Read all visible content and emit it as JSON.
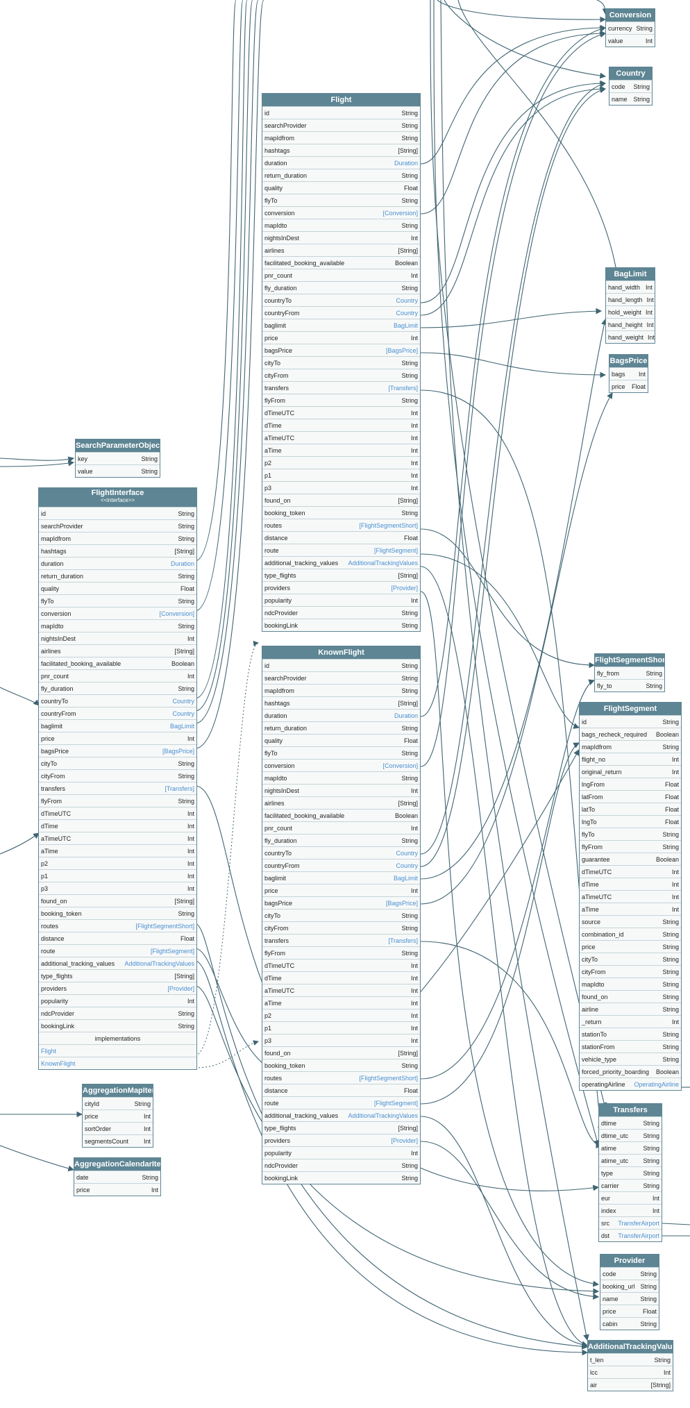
{
  "tables": {
    "conversion": {
      "title": "Conversion",
      "fields": [
        {
          "n": "currency",
          "t": "String"
        },
        {
          "n": "value",
          "t": "Int"
        }
      ]
    },
    "country": {
      "title": "Country",
      "fields": [
        {
          "n": "code",
          "t": "String"
        },
        {
          "n": "name",
          "t": "String"
        }
      ]
    },
    "flight": {
      "title": "Flight",
      "fields": [
        {
          "n": "id",
          "t": "String"
        },
        {
          "n": "searchProvider",
          "t": "String"
        },
        {
          "n": "mapIdfrom",
          "t": "String"
        },
        {
          "n": "hashtags",
          "t": "[String]"
        },
        {
          "n": "duration",
          "t": "Duration",
          "link": true
        },
        {
          "n": "return_duration",
          "t": "String"
        },
        {
          "n": "quality",
          "t": "Float"
        },
        {
          "n": "flyTo",
          "t": "String"
        },
        {
          "n": "conversion",
          "t": "[Conversion]",
          "link": true
        },
        {
          "n": "mapIdto",
          "t": "String"
        },
        {
          "n": "nightsInDest",
          "t": "Int"
        },
        {
          "n": "airlines",
          "t": "[String]"
        },
        {
          "n": "facilitated_booking_available",
          "t": "Boolean"
        },
        {
          "n": "pnr_count",
          "t": "Int"
        },
        {
          "n": "fly_duration",
          "t": "String"
        },
        {
          "n": "countryTo",
          "t": "Country",
          "link": true
        },
        {
          "n": "countryFrom",
          "t": "Country",
          "link": true
        },
        {
          "n": "baglimit",
          "t": "BagLimit",
          "link": true
        },
        {
          "n": "price",
          "t": "Int"
        },
        {
          "n": "bagsPrice",
          "t": "[BagsPrice]",
          "link": true
        },
        {
          "n": "cityTo",
          "t": "String"
        },
        {
          "n": "cityFrom",
          "t": "String"
        },
        {
          "n": "transfers",
          "t": "[Transfers]",
          "link": true
        },
        {
          "n": "flyFrom",
          "t": "String"
        },
        {
          "n": "dTimeUTC",
          "t": "Int"
        },
        {
          "n": "dTime",
          "t": "Int"
        },
        {
          "n": "aTimeUTC",
          "t": "Int"
        },
        {
          "n": "aTime",
          "t": "Int"
        },
        {
          "n": "p2",
          "t": "Int"
        },
        {
          "n": "p1",
          "t": "Int"
        },
        {
          "n": "p3",
          "t": "Int"
        },
        {
          "n": "found_on",
          "t": "[String]"
        },
        {
          "n": "booking_token",
          "t": "String"
        },
        {
          "n": "routes",
          "t": "[FlightSegmentShort]",
          "link": true
        },
        {
          "n": "distance",
          "t": "Float"
        },
        {
          "n": "route",
          "t": "[FlightSegment]",
          "link": true
        },
        {
          "n": "additional_tracking_values",
          "t": "AdditionalTrackingValues",
          "link": true
        },
        {
          "n": "type_flights",
          "t": "[String]"
        },
        {
          "n": "providers",
          "t": "[Provider]",
          "link": true
        },
        {
          "n": "popularity",
          "t": "Int"
        },
        {
          "n": "ndcProvider",
          "t": "String"
        },
        {
          "n": "bookingLink",
          "t": "String"
        }
      ]
    },
    "knownflight": {
      "title": "KnownFlight",
      "fields": [
        {
          "n": "id",
          "t": "String"
        },
        {
          "n": "searchProvider",
          "t": "String"
        },
        {
          "n": "mapIdfrom",
          "t": "String"
        },
        {
          "n": "hashtags",
          "t": "[String]"
        },
        {
          "n": "duration",
          "t": "Duration",
          "link": true
        },
        {
          "n": "return_duration",
          "t": "String"
        },
        {
          "n": "quality",
          "t": "Float"
        },
        {
          "n": "flyTo",
          "t": "String"
        },
        {
          "n": "conversion",
          "t": "[Conversion]",
          "link": true
        },
        {
          "n": "mapIdto",
          "t": "String"
        },
        {
          "n": "nightsInDest",
          "t": "Int"
        },
        {
          "n": "airlines",
          "t": "[String]"
        },
        {
          "n": "facilitated_booking_available",
          "t": "Boolean"
        },
        {
          "n": "pnr_count",
          "t": "Int"
        },
        {
          "n": "fly_duration",
          "t": "String"
        },
        {
          "n": "countryTo",
          "t": "Country",
          "link": true
        },
        {
          "n": "countryFrom",
          "t": "Country",
          "link": true
        },
        {
          "n": "baglimit",
          "t": "BagLimit",
          "link": true
        },
        {
          "n": "price",
          "t": "Int"
        },
        {
          "n": "bagsPrice",
          "t": "[BagsPrice]",
          "link": true
        },
        {
          "n": "cityTo",
          "t": "String"
        },
        {
          "n": "cityFrom",
          "t": "String"
        },
        {
          "n": "transfers",
          "t": "[Transfers]",
          "link": true
        },
        {
          "n": "flyFrom",
          "t": "String"
        },
        {
          "n": "dTimeUTC",
          "t": "Int"
        },
        {
          "n": "dTime",
          "t": "Int"
        },
        {
          "n": "aTimeUTC",
          "t": "Int"
        },
        {
          "n": "aTime",
          "t": "Int"
        },
        {
          "n": "p2",
          "t": "Int"
        },
        {
          "n": "p1",
          "t": "Int"
        },
        {
          "n": "p3",
          "t": "Int"
        },
        {
          "n": "found_on",
          "t": "[String]"
        },
        {
          "n": "booking_token",
          "t": "String"
        },
        {
          "n": "routes",
          "t": "[FlightSegmentShort]",
          "link": true
        },
        {
          "n": "distance",
          "t": "Float"
        },
        {
          "n": "route",
          "t": "[FlightSegment]",
          "link": true
        },
        {
          "n": "additional_tracking_values",
          "t": "AdditionalTrackingValues",
          "link": true
        },
        {
          "n": "type_flights",
          "t": "[String]"
        },
        {
          "n": "providers",
          "t": "[Provider]",
          "link": true
        },
        {
          "n": "popularity",
          "t": "Int"
        },
        {
          "n": "ndcProvider",
          "t": "String"
        },
        {
          "n": "bookingLink",
          "t": "String"
        }
      ]
    },
    "flightinterface": {
      "title": "FlightInterface",
      "subtitle": "<<interface>>",
      "fields": [
        {
          "n": "id",
          "t": "String"
        },
        {
          "n": "searchProvider",
          "t": "String"
        },
        {
          "n": "mapIdfrom",
          "t": "String"
        },
        {
          "n": "hashtags",
          "t": "[String]"
        },
        {
          "n": "duration",
          "t": "Duration",
          "link": true
        },
        {
          "n": "return_duration",
          "t": "String"
        },
        {
          "n": "quality",
          "t": "Float"
        },
        {
          "n": "flyTo",
          "t": "String"
        },
        {
          "n": "conversion",
          "t": "[Conversion]",
          "link": true
        },
        {
          "n": "mapIdto",
          "t": "String"
        },
        {
          "n": "nightsInDest",
          "t": "Int"
        },
        {
          "n": "airlines",
          "t": "[String]"
        },
        {
          "n": "facilitated_booking_available",
          "t": "Boolean"
        },
        {
          "n": "pnr_count",
          "t": "Int"
        },
        {
          "n": "fly_duration",
          "t": "String"
        },
        {
          "n": "countryTo",
          "t": "Country",
          "link": true
        },
        {
          "n": "countryFrom",
          "t": "Country",
          "link": true
        },
        {
          "n": "baglimit",
          "t": "BagLimit",
          "link": true
        },
        {
          "n": "price",
          "t": "Int"
        },
        {
          "n": "bagsPrice",
          "t": "[BagsPrice]",
          "link": true
        },
        {
          "n": "cityTo",
          "t": "String"
        },
        {
          "n": "cityFrom",
          "t": "String"
        },
        {
          "n": "transfers",
          "t": "[Transfers]",
          "link": true
        },
        {
          "n": "flyFrom",
          "t": "String"
        },
        {
          "n": "dTimeUTC",
          "t": "Int"
        },
        {
          "n": "dTime",
          "t": "Int"
        },
        {
          "n": "aTimeUTC",
          "t": "Int"
        },
        {
          "n": "aTime",
          "t": "Int"
        },
        {
          "n": "p2",
          "t": "Int"
        },
        {
          "n": "p1",
          "t": "Int"
        },
        {
          "n": "p3",
          "t": "Int"
        },
        {
          "n": "found_on",
          "t": "[String]"
        },
        {
          "n": "booking_token",
          "t": "String"
        },
        {
          "n": "routes",
          "t": "[FlightSegmentShort]",
          "link": true
        },
        {
          "n": "distance",
          "t": "Float"
        },
        {
          "n": "route",
          "t": "[FlightSegment]",
          "link": true
        },
        {
          "n": "additional_tracking_values",
          "t": "AdditionalTrackingValues",
          "link": true
        },
        {
          "n": "type_flights",
          "t": "[String]"
        },
        {
          "n": "providers",
          "t": "[Provider]",
          "link": true
        },
        {
          "n": "popularity",
          "t": "Int"
        },
        {
          "n": "ndcProvider",
          "t": "String"
        },
        {
          "n": "bookingLink",
          "t": "String"
        }
      ],
      "implementations_label": "implementations",
      "implementations": [
        "Flight",
        "KnownFlight"
      ]
    },
    "searchparameterobject": {
      "title": "SearchParameterObject",
      "fields": [
        {
          "n": "key",
          "t": "String"
        },
        {
          "n": "value",
          "t": "String"
        }
      ]
    },
    "baglimit": {
      "title": "BagLimit",
      "fields": [
        {
          "n": "hand_width",
          "t": "Int"
        },
        {
          "n": "hand_length",
          "t": "Int"
        },
        {
          "n": "hold_weight",
          "t": "Int"
        },
        {
          "n": "hand_height",
          "t": "Int"
        },
        {
          "n": "hand_weight",
          "t": "Int"
        }
      ]
    },
    "bagsprice": {
      "title": "BagsPrice",
      "fields": [
        {
          "n": "bags",
          "t": "Int"
        },
        {
          "n": "price",
          "t": "Float"
        }
      ]
    },
    "flightsegmentshort": {
      "title": "FlightSegmentShort",
      "fields": [
        {
          "n": "fly_from",
          "t": "String"
        },
        {
          "n": "fly_to",
          "t": "String"
        }
      ]
    },
    "flightsegment": {
      "title": "FlightSegment",
      "fields": [
        {
          "n": "id",
          "t": "String"
        },
        {
          "n": "bags_recheck_required",
          "t": "Boolean"
        },
        {
          "n": "mapIdfrom",
          "t": "String"
        },
        {
          "n": "flight_no",
          "t": "Int"
        },
        {
          "n": "original_return",
          "t": "Int"
        },
        {
          "n": "lngFrom",
          "t": "Float"
        },
        {
          "n": "latFrom",
          "t": "Float"
        },
        {
          "n": "latTo",
          "t": "Float"
        },
        {
          "n": "lngTo",
          "t": "Float"
        },
        {
          "n": "flyTo",
          "t": "String"
        },
        {
          "n": "flyFrom",
          "t": "String"
        },
        {
          "n": "guarantee",
          "t": "Boolean"
        },
        {
          "n": "dTimeUTC",
          "t": "Int"
        },
        {
          "n": "dTime",
          "t": "Int"
        },
        {
          "n": "aTimeUTC",
          "t": "Int"
        },
        {
          "n": "aTime",
          "t": "Int"
        },
        {
          "n": "source",
          "t": "String"
        },
        {
          "n": "combination_id",
          "t": "String"
        },
        {
          "n": "price",
          "t": "String"
        },
        {
          "n": "cityTo",
          "t": "String"
        },
        {
          "n": "cityFrom",
          "t": "String"
        },
        {
          "n": "mapIdto",
          "t": "String"
        },
        {
          "n": "found_on",
          "t": "String"
        },
        {
          "n": "airline",
          "t": "String"
        },
        {
          "n": "_return",
          "t": "Int"
        },
        {
          "n": "stationTo",
          "t": "String"
        },
        {
          "n": "stationFrom",
          "t": "String"
        },
        {
          "n": "vehicle_type",
          "t": "String"
        },
        {
          "n": "forced_priority_boarding",
          "t": "Boolean"
        },
        {
          "n": "operatingAirline",
          "t": "OperatingAirline",
          "link": true
        }
      ]
    },
    "transfers": {
      "title": "Transfers",
      "fields": [
        {
          "n": "dtime",
          "t": "String"
        },
        {
          "n": "dtime_utc",
          "t": "String"
        },
        {
          "n": "atime",
          "t": "String"
        },
        {
          "n": "atime_utc",
          "t": "String"
        },
        {
          "n": "type",
          "t": "String"
        },
        {
          "n": "carrier",
          "t": "String"
        },
        {
          "n": "eur",
          "t": "Int"
        },
        {
          "n": "index",
          "t": "Int"
        },
        {
          "n": "src",
          "t": "TransferAirport",
          "link": true
        },
        {
          "n": "dst",
          "t": "TransferAirport",
          "link": true
        }
      ]
    },
    "provider": {
      "title": "Provider",
      "fields": [
        {
          "n": "code",
          "t": "String"
        },
        {
          "n": "booking_url",
          "t": "String"
        },
        {
          "n": "name",
          "t": "String"
        },
        {
          "n": "price",
          "t": "Float"
        },
        {
          "n": "cabin",
          "t": "String"
        }
      ]
    },
    "additionaltrackingvalues": {
      "title": "AdditionalTrackingValues",
      "fields": [
        {
          "n": "t_len",
          "t": "String"
        },
        {
          "n": "lcc",
          "t": "Int"
        },
        {
          "n": "air",
          "t": "[String]"
        }
      ]
    },
    "aggregationmapitem": {
      "title": "AggregationMapItem",
      "fields": [
        {
          "n": "cityId",
          "t": "String"
        },
        {
          "n": "price",
          "t": "Int"
        },
        {
          "n": "sortOrder",
          "t": "Int"
        },
        {
          "n": "segmentsCount",
          "t": "Int"
        }
      ]
    },
    "aggregationcalendaritem": {
      "title": "AggregationCalendarItem",
      "fields": [
        {
          "n": "date",
          "t": "String"
        },
        {
          "n": "price",
          "t": "Int"
        }
      ]
    }
  },
  "colors": {
    "header": "#5e8593",
    "body": "#f7f9f9",
    "edge": "#3f6472",
    "link": "#4a8fcf"
  }
}
